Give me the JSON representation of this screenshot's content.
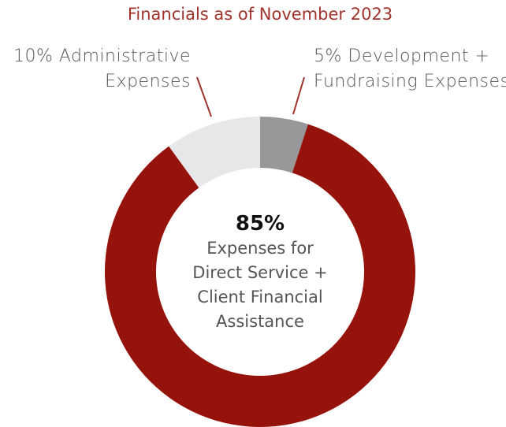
{
  "chart_data": {
    "type": "pie",
    "title": "Financials as of November 2023",
    "categories": [
      "Development + Fundraising Expenses",
      "Expenses for Direct Service + Client Financial Assistance",
      "Administrative Expenses"
    ],
    "values": [
      5,
      85,
      10
    ],
    "value_labels": [
      "5%",
      "85%",
      "10%"
    ],
    "colors": [
      "#98989a",
      "#96130c",
      "#e6e7e9"
    ],
    "donut": true
  }
}
